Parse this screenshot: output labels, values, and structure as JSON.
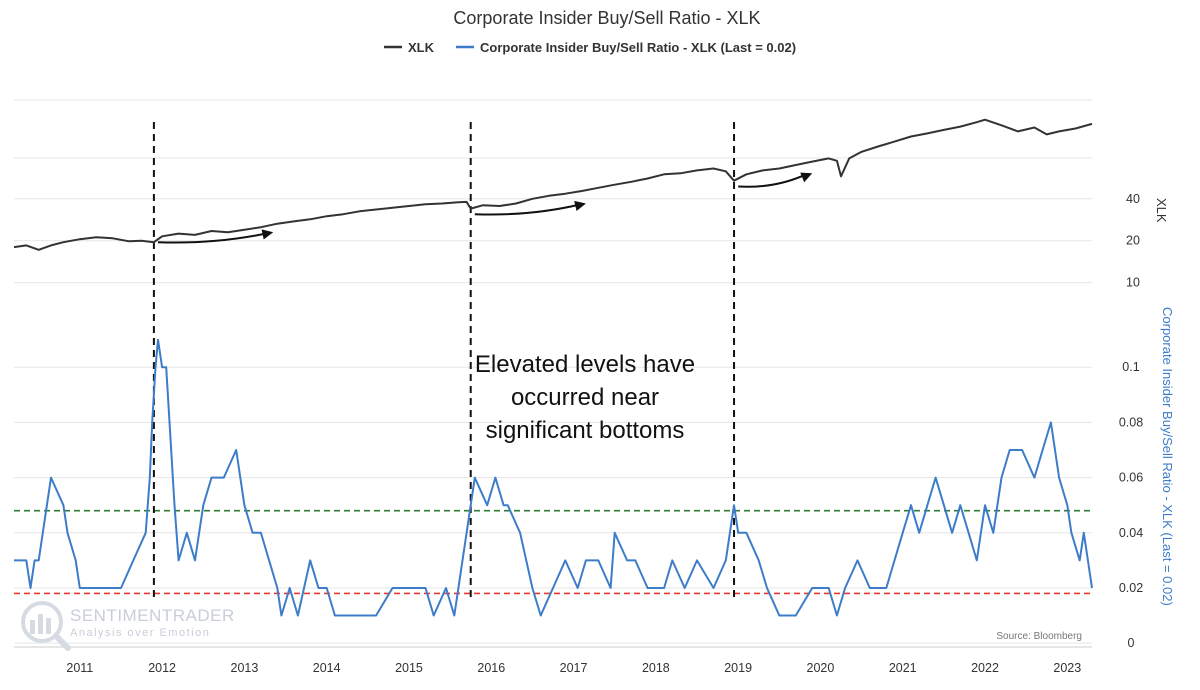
{
  "chart_data": {
    "type": "line",
    "title": "Corporate Insider Buy/Sell Ratio - XLK",
    "legend": {
      "placement": "top-center"
    },
    "source": "Source: Bloomberg",
    "watermark": {
      "name": "SENTIMENTRADER",
      "tagline": "Analysis over Emotion"
    },
    "x_ticks": [
      "2011",
      "2012",
      "2013",
      "2014",
      "2015",
      "2016",
      "2017",
      "2018",
      "2019",
      "2020",
      "2021",
      "2022",
      "2023"
    ],
    "xlim": [
      2010.2,
      2023.3
    ],
    "annotation": [
      "Elevated levels have",
      "occurred near",
      "significant bottoms"
    ],
    "vertical_markers": [
      2011.9,
      2015.75,
      2018.95
    ],
    "arrows": [
      {
        "from": [
          2011.95,
          19.5
        ],
        "to": [
          2013.35,
          23
        ]
      },
      {
        "from": [
          2015.8,
          31
        ],
        "to": [
          2017.15,
          37
        ]
      },
      {
        "from": [
          2019.0,
          49
        ],
        "to": [
          2019.9,
          61
        ]
      }
    ],
    "top_panel": {
      "series": [
        {
          "name": "XLK",
          "color": "#333333",
          "scale": "log",
          "x": [
            2010.2,
            2010.35,
            2010.5,
            2010.65,
            2010.8,
            2011.0,
            2011.2,
            2011.4,
            2011.6,
            2011.75,
            2011.9,
            2012.0,
            2012.2,
            2012.4,
            2012.6,
            2012.8,
            2013.0,
            2013.2,
            2013.4,
            2013.6,
            2013.8,
            2014.0,
            2014.2,
            2014.4,
            2014.6,
            2014.8,
            2015.0,
            2015.2,
            2015.4,
            2015.6,
            2015.7,
            2015.75,
            2015.9,
            2016.1,
            2016.3,
            2016.5,
            2016.7,
            2016.9,
            2017.1,
            2017.3,
            2017.5,
            2017.7,
            2017.9,
            2018.1,
            2018.3,
            2018.5,
            2018.7,
            2018.85,
            2018.95,
            2019.1,
            2019.3,
            2019.5,
            2019.7,
            2019.9,
            2020.1,
            2020.2,
            2020.25,
            2020.35,
            2020.5,
            2020.7,
            2020.9,
            2021.1,
            2021.3,
            2021.5,
            2021.7,
            2021.9,
            2022.0,
            2022.2,
            2022.4,
            2022.6,
            2022.75,
            2022.9,
            2023.1,
            2023.3
          ],
          "values": [
            18,
            18.5,
            17.2,
            18.5,
            19.5,
            20.5,
            21.2,
            20.8,
            19.8,
            20,
            19.5,
            21.5,
            22.5,
            22,
            23.5,
            23,
            24,
            25,
            26.5,
            27.5,
            28.5,
            30,
            31,
            32.5,
            33.5,
            34.5,
            35.5,
            36.5,
            37,
            37.8,
            38,
            34,
            36,
            35.5,
            37,
            40,
            42,
            43.5,
            45.5,
            48,
            50.5,
            53,
            56,
            60,
            61,
            64,
            66,
            63,
            54,
            60,
            64,
            66,
            70,
            74,
            78,
            75,
            58,
            78,
            87,
            95,
            103,
            112,
            118,
            125,
            132,
            142,
            148,
            135,
            122,
            130,
            116,
            122,
            128,
            138
          ]
        }
      ],
      "y_ticks": [
        40,
        20,
        10
      ],
      "ylim": [
        7.5,
        250
      ],
      "ylabel": "XLK"
    },
    "bottom_panel": {
      "series": [
        {
          "name": "Corporate Insider Buy/Sell Ratio - XLK (Last = 0.02)",
          "color": "#3d7cc9",
          "x": [
            2010.2,
            2010.35,
            2010.4,
            2010.45,
            2010.5,
            2010.6,
            2010.65,
            2010.8,
            2010.85,
            2010.95,
            2011.0,
            2011.1,
            2011.15,
            2011.3,
            2011.5,
            2011.65,
            2011.8,
            2011.85,
            2011.88,
            2011.92,
            2011.95,
            2012.0,
            2012.05,
            2012.15,
            2012.2,
            2012.3,
            2012.4,
            2012.5,
            2012.6,
            2012.75,
            2012.9,
            2013.0,
            2013.1,
            2013.2,
            2013.4,
            2013.45,
            2013.55,
            2013.65,
            2013.8,
            2013.9,
            2014.0,
            2014.1,
            2014.2,
            2014.4,
            2014.6,
            2014.8,
            2015.0,
            2015.2,
            2015.3,
            2015.45,
            2015.55,
            2015.65,
            2015.75,
            2015.8,
            2015.95,
            2016.05,
            2016.15,
            2016.2,
            2016.35,
            2016.5,
            2016.6,
            2016.75,
            2016.9,
            2017.05,
            2017.15,
            2017.3,
            2017.45,
            2017.5,
            2017.65,
            2017.75,
            2017.9,
            2018.1,
            2018.2,
            2018.35,
            2018.5,
            2018.7,
            2018.85,
            2018.95,
            2019.0,
            2019.1,
            2019.25,
            2019.35,
            2019.5,
            2019.7,
            2019.9,
            2020.1,
            2020.2,
            2020.3,
            2020.45,
            2020.6,
            2020.8,
            2020.9,
            2021.0,
            2021.1,
            2021.2,
            2021.3,
            2021.4,
            2021.5,
            2021.6,
            2021.7,
            2021.8,
            2021.9,
            2022.0,
            2022.1,
            2022.2,
            2022.3,
            2022.45,
            2022.6,
            2022.7,
            2022.8,
            2022.9,
            2023.0,
            2023.05,
            2023.15,
            2023.2,
            2023.25,
            2023.3
          ],
          "values": [
            0.03,
            0.03,
            0.02,
            0.03,
            0.03,
            0.05,
            0.06,
            0.05,
            0.04,
            0.03,
            0.02,
            0.02,
            0.02,
            0.02,
            0.02,
            0.03,
            0.04,
            0.06,
            0.08,
            0.1,
            0.11,
            0.1,
            0.1,
            0.05,
            0.03,
            0.04,
            0.03,
            0.05,
            0.06,
            0.06,
            0.07,
            0.05,
            0.04,
            0.04,
            0.02,
            0.01,
            0.02,
            0.01,
            0.03,
            0.02,
            0.02,
            0.01,
            0.01,
            0.01,
            0.01,
            0.02,
            0.02,
            0.02,
            0.01,
            0.02,
            0.01,
            0.03,
            0.05,
            0.06,
            0.05,
            0.06,
            0.05,
            0.05,
            0.04,
            0.02,
            0.01,
            0.02,
            0.03,
            0.02,
            0.03,
            0.03,
            0.02,
            0.04,
            0.03,
            0.03,
            0.02,
            0.02,
            0.03,
            0.02,
            0.03,
            0.02,
            0.03,
            0.05,
            0.04,
            0.04,
            0.03,
            0.02,
            0.01,
            0.01,
            0.02,
            0.02,
            0.01,
            0.02,
            0.03,
            0.02,
            0.02,
            0.03,
            0.04,
            0.05,
            0.04,
            0.05,
            0.06,
            0.05,
            0.04,
            0.05,
            0.04,
            0.03,
            0.05,
            0.04,
            0.06,
            0.07,
            0.07,
            0.06,
            0.07,
            0.08,
            0.06,
            0.05,
            0.04,
            0.03,
            0.04,
            0.03,
            0.02
          ]
        }
      ],
      "y_ticks": [
        0.1,
        0.08,
        0.06,
        0.04,
        0.02,
        0
      ],
      "y_tick_labels": [
        "0.1",
        "0.08",
        "0.06",
        "0.04",
        "0.02",
        "0"
      ],
      "ylim": [
        -0.0014,
        0.1164
      ],
      "ylabel": "Corporate Insider Buy/Sell Ratio - XLK (Last = 0.02)",
      "reference_lines": [
        {
          "value": 0.048,
          "color": "#2e7d32",
          "style": "dashed"
        },
        {
          "value": 0.018,
          "color": "#e53935",
          "style": "dashed"
        }
      ]
    }
  }
}
